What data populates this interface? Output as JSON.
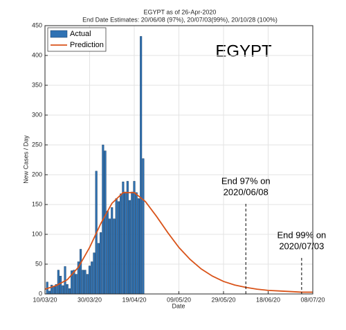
{
  "chart_data": {
    "type": "bar+line",
    "title": "EGYPT as of 26-Apr-2020",
    "subtitle": "End Date Estimates: 20/06/08 (97%), 20/07/03(99%), 20/10/28 (100%)",
    "label": "EGYPT",
    "x_label": "Date",
    "y_label": "New Cases / Day",
    "xlim": [
      "2020-03-10",
      "2020-07-08"
    ],
    "xticks": [
      {
        "value": "2020-03-10",
        "label": "10/03/20"
      },
      {
        "value": "2020-03-30",
        "label": "30/03/20"
      },
      {
        "value": "2020-04-19",
        "label": "19/04/20"
      },
      {
        "value": "2020-05-09",
        "label": "09/05/20"
      },
      {
        "value": "2020-05-29",
        "label": "29/05/20"
      },
      {
        "value": "2020-06-18",
        "label": "18/06/20"
      },
      {
        "value": "2020-07-08",
        "label": "08/07/20"
      }
    ],
    "ylim": [
      0,
      450
    ],
    "yticks": [
      0,
      50,
      100,
      150,
      200,
      250,
      300,
      350,
      400,
      450
    ],
    "grid": true,
    "legend": "top-left",
    "series": [
      {
        "name": "Actual",
        "type": "bar",
        "color": "#2f72b3",
        "x": [
          "2020-03-11",
          "2020-03-12",
          "2020-03-13",
          "2020-03-14",
          "2020-03-15",
          "2020-03-16",
          "2020-03-17",
          "2020-03-18",
          "2020-03-19",
          "2020-03-20",
          "2020-03-21",
          "2020-03-22",
          "2020-03-23",
          "2020-03-24",
          "2020-03-25",
          "2020-03-26",
          "2020-03-27",
          "2020-03-28",
          "2020-03-29",
          "2020-03-30",
          "2020-03-31",
          "2020-04-01",
          "2020-04-02",
          "2020-04-03",
          "2020-04-04",
          "2020-04-05",
          "2020-04-06",
          "2020-04-07",
          "2020-04-08",
          "2020-04-09",
          "2020-04-10",
          "2020-04-11",
          "2020-04-12",
          "2020-04-13",
          "2020-04-14",
          "2020-04-15",
          "2020-04-16",
          "2020-04-17",
          "2020-04-18",
          "2020-04-19",
          "2020-04-20",
          "2020-04-21",
          "2020-04-22",
          "2020-04-23"
        ],
        "values": [
          20,
          5,
          15,
          13,
          16,
          40,
          30,
          14,
          46,
          16,
          9,
          39,
          40,
          33,
          54,
          75,
          40,
          40,
          33,
          47,
          54,
          69,
          206,
          85,
          103,
          250,
          240,
          139,
          126,
          145,
          126,
          160,
          155,
          168,
          188,
          171,
          189,
          157,
          171,
          189,
          170,
          160,
          432,
          227
        ]
      },
      {
        "name": "Prediction",
        "type": "line",
        "color": "#d95319",
        "x": [
          "2020-03-10",
          "2020-03-15",
          "2020-03-20",
          "2020-03-25",
          "2020-03-30",
          "2020-04-04",
          "2020-04-09",
          "2020-04-14",
          "2020-04-19",
          "2020-04-24",
          "2020-04-29",
          "2020-05-04",
          "2020-05-09",
          "2020-05-14",
          "2020-05-19",
          "2020-05-24",
          "2020-05-29",
          "2020-06-03",
          "2020-06-08",
          "2020-06-13",
          "2020-06-18",
          "2020-06-23",
          "2020-06-28",
          "2020-07-03",
          "2020-07-08"
        ],
        "values": [
          8,
          14,
          24,
          45,
          78,
          118,
          152,
          170,
          170,
          155,
          130,
          103,
          78,
          58,
          42,
          30,
          21,
          15,
          11,
          8,
          6,
          5,
          4,
          3,
          3
        ]
      }
    ],
    "annotations": [
      {
        "x": "2020-06-08",
        "lines": [
          "End 97% on",
          "2020/06/08"
        ]
      },
      {
        "x": "2020-07-03",
        "lines": [
          "End 99% on",
          "2020/07/03"
        ]
      }
    ]
  }
}
